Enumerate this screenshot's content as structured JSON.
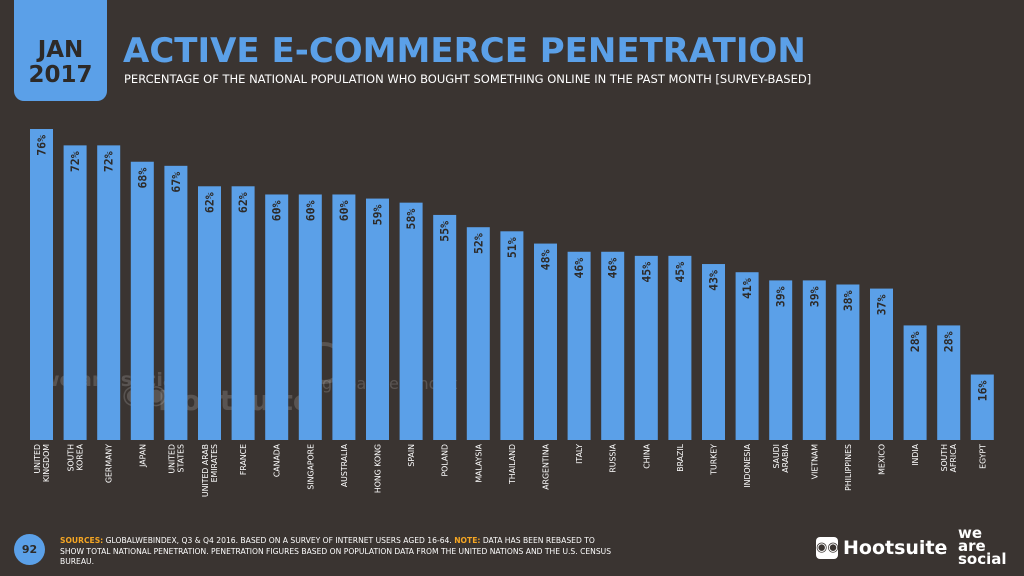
{
  "header": {
    "month": "JAN",
    "year": "2017",
    "title": "ACTIVE E-COMMERCE PENETRATION",
    "subtitle": "PERCENTAGE OF THE NATIONAL POPULATION WHO BOUGHT SOMETHING ONLINE IN THE PAST MONTH [SURVEY-BASED]"
  },
  "colors": {
    "bar": "#5ba0e8",
    "background": "#3a3431",
    "label_text": "#2d2a28",
    "accent": "#f5a623"
  },
  "chart_data": {
    "type": "bar",
    "title": "ACTIVE E-COMMERCE PENETRATION",
    "xlabel": "",
    "ylabel": "",
    "ylim": [
      0,
      80
    ],
    "categories": [
      [
        "UNITED",
        "KINGDOM"
      ],
      [
        "SOUTH",
        "KOREA"
      ],
      [
        "GERMANY"
      ],
      [
        "JAPAN"
      ],
      [
        "UNITED",
        "STATES"
      ],
      [
        "UNITED ARAB",
        "EMIRATES"
      ],
      [
        "FRANCE"
      ],
      [
        "CANADA"
      ],
      [
        "SINGAPORE"
      ],
      [
        "AUSTRALIA"
      ],
      [
        "HONG KONG"
      ],
      [
        "SPAIN"
      ],
      [
        "POLAND"
      ],
      [
        "MALAYSIA"
      ],
      [
        "THAILAND"
      ],
      [
        "ARGENTINA"
      ],
      [
        "ITALY"
      ],
      [
        "RUSSIA"
      ],
      [
        "CHINA"
      ],
      [
        "BRAZIL"
      ],
      [
        "TURKEY"
      ],
      [
        "INDONESIA"
      ],
      [
        "SAUDI",
        "ARABIA"
      ],
      [
        "VIETNAM"
      ],
      [
        "PHILIPPINES"
      ],
      [
        "MEXICO"
      ],
      [
        "INDIA"
      ],
      [
        "SOUTH",
        "AFRICA"
      ],
      [
        "EGYPT"
      ]
    ],
    "values": [
      76,
      72,
      72,
      68,
      67,
      62,
      62,
      60,
      60,
      60,
      59,
      58,
      55,
      52,
      51,
      48,
      46,
      46,
      45,
      45,
      43,
      41,
      39,
      39,
      38,
      37,
      28,
      28,
      16
    ],
    "value_labels": [
      "76%",
      "72%",
      "72%",
      "68%",
      "67%",
      "62%",
      "62%",
      "60%",
      "60%",
      "60%",
      "59%",
      "58%",
      "55%",
      "52%",
      "51%",
      "48%",
      "46%",
      "46%",
      "45%",
      "45%",
      "43%",
      "41%",
      "39%",
      "39%",
      "38%",
      "37%",
      "28%",
      "28%",
      "16%"
    ]
  },
  "watermarks": {
    "we_are_social": "we are social",
    "hootsuite": "Hootsuite",
    "globalwebindex": "global web index"
  },
  "footer": {
    "page_number": "92",
    "sources_label": "SOURCES:",
    "sources_text": " GLOBALWEBINDEX, Q3 & Q4 2016. BASED ON A SURVEY OF INTERNET USERS AGED 16-64. ",
    "note_label": "NOTE:",
    "note_text": " DATA HAS BEEN REBASED TO SHOW TOTAL NATIONAL PENETRATION. PENETRATION FIGURES BASED ON POPULATION DATA FROM THE UNITED NATIONS AND THE U.S. CENSUS BUREAU.",
    "brand_hootsuite": "Hootsuite",
    "brand_was": [
      "we",
      "are",
      "social"
    ]
  }
}
